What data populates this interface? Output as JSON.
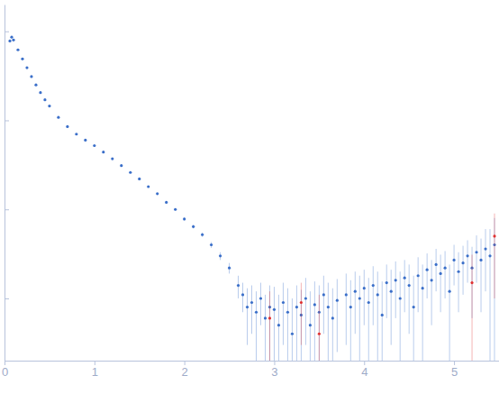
{
  "chart_data": {
    "type": "scatter",
    "log": "y",
    "tick_labels": "x",
    "grid": false,
    "marker": "circle",
    "xlim": [
      0,
      5.5
    ],
    "xticks": [
      0,
      1,
      2,
      3,
      4,
      5
    ],
    "ylim": [
      0.002,
      20
    ],
    "yticks": [
      0.01,
      0.1,
      1,
      10
    ],
    "series": [
      {
        "color": "#3b6fc9",
        "x": [
          0.06,
          0.08,
          0.1,
          0.15,
          0.2,
          0.25,
          0.3,
          0.35,
          0.4,
          0.45,
          0.5,
          0.6,
          0.7,
          0.8,
          0.9,
          1.0,
          1.1,
          1.2,
          1.3,
          1.4,
          1.5,
          1.6,
          1.7,
          1.8,
          1.9,
          2.0,
          2.1,
          2.2,
          2.3,
          2.4,
          2.5,
          2.6,
          2.65,
          2.7,
          2.75,
          2.8,
          2.85,
          2.9,
          2.95,
          3.0,
          3.05,
          3.1,
          3.15,
          3.2,
          3.25,
          3.3,
          3.35,
          3.4,
          3.45,
          3.5,
          3.55,
          3.6,
          3.65,
          3.7,
          3.8,
          3.85,
          3.9,
          3.95,
          4.0,
          4.05,
          4.1,
          4.15,
          4.2,
          4.25,
          4.3,
          4.35,
          4.4,
          4.45,
          4.5,
          4.55,
          4.6,
          4.65,
          4.7,
          4.75,
          4.8,
          4.85,
          4.9,
          4.95,
          5.0,
          5.05,
          5.1,
          5.15,
          5.2,
          5.25,
          5.3,
          5.35,
          5.4,
          5.45
        ],
        "values": [
          7.8,
          8.6,
          8.0,
          6.2,
          4.9,
          3.9,
          3.1,
          2.5,
          2.05,
          1.7,
          1.45,
          1.08,
          0.85,
          0.7,
          0.6,
          0.52,
          0.44,
          0.37,
          0.31,
          0.26,
          0.22,
          0.18,
          0.15,
          0.12,
          0.1,
          0.078,
          0.064,
          0.052,
          0.04,
          0.03,
          0.022,
          0.014,
          0.011,
          0.008,
          0.009,
          0.007,
          0.01,
          0.006,
          0.008,
          0.0075,
          0.005,
          0.009,
          0.007,
          0.004,
          0.008,
          0.0065,
          0.01,
          0.005,
          0.0085,
          0.007,
          0.011,
          0.008,
          0.006,
          0.0095,
          0.011,
          0.008,
          0.012,
          0.01,
          0.013,
          0.009,
          0.014,
          0.011,
          0.0065,
          0.015,
          0.012,
          0.016,
          0.01,
          0.017,
          0.014,
          0.008,
          0.018,
          0.013,
          0.021,
          0.016,
          0.024,
          0.019,
          0.022,
          0.012,
          0.027,
          0.02,
          0.025,
          0.03,
          0.022,
          0.033,
          0.027,
          0.036,
          0.03,
          0.04
        ],
        "errors": [
          0.1,
          0.1,
          0.1,
          0.08,
          0.06,
          0.05,
          0.04,
          0.03,
          0.025,
          0.02,
          0.018,
          0.014,
          0.011,
          0.009,
          0.008,
          0.007,
          0.006,
          0.005,
          0.005,
          0.004,
          0.004,
          0.004,
          0.003,
          0.003,
          0.003,
          0.003,
          0.003,
          0.003,
          0.003,
          0.003,
          0.003,
          0.004,
          0.004,
          0.005,
          0.005,
          0.005,
          0.005,
          0.005,
          0.006,
          0.006,
          0.006,
          0.006,
          0.006,
          0.006,
          0.006,
          0.006,
          0.007,
          0.007,
          0.007,
          0.007,
          0.007,
          0.007,
          0.007,
          0.007,
          0.008,
          0.008,
          0.008,
          0.008,
          0.008,
          0.008,
          0.009,
          0.009,
          0.009,
          0.009,
          0.009,
          0.01,
          0.01,
          0.01,
          0.01,
          0.01,
          0.011,
          0.011,
          0.011,
          0.011,
          0.012,
          0.012,
          0.012,
          0.012,
          0.013,
          0.013,
          0.014,
          0.015,
          0.016,
          0.018,
          0.02,
          0.024,
          0.03,
          0.04
        ]
      },
      {
        "color": "#e03030",
        "x": [
          2.95,
          3.3,
          3.5,
          5.2,
          5.45
        ],
        "values": [
          0.006,
          0.009,
          0.004,
          0.015,
          0.05
        ],
        "errors": [
          0.006,
          0.006,
          0.007,
          0.016,
          0.04
        ]
      }
    ]
  }
}
